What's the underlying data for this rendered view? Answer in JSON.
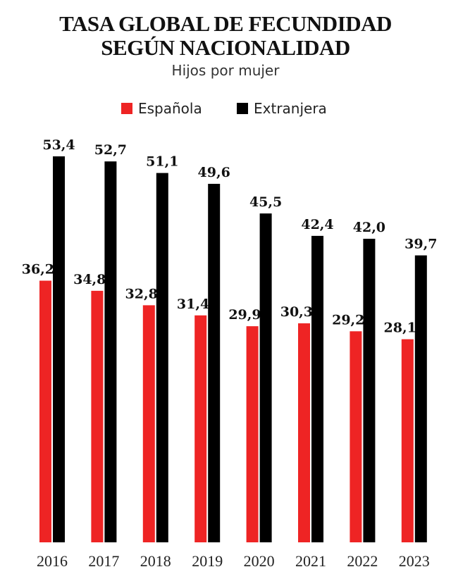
{
  "title_line1": "TASA GLOBAL DE FECUNDIDAD",
  "title_line2": "SEGÚN NACIONALIDAD",
  "subtitle": "Hijos por mujer",
  "legend": [
    {
      "label": "Española",
      "color": "#ee2424"
    },
    {
      "label": "Extranjera",
      "color": "#000000"
    }
  ],
  "chart_data": {
    "type": "bar",
    "title": "TASA GLOBAL DE FECUNDIDAD SEGÚN NACIONALIDAD",
    "subtitle": "Hijos por mujer",
    "categories": [
      "2016",
      "2017",
      "2018",
      "2019",
      "2020",
      "2021",
      "2022",
      "2023"
    ],
    "series": [
      {
        "name": "Española",
        "color": "#ee2424",
        "values": [
          36.2,
          34.8,
          32.8,
          31.4,
          29.9,
          30.3,
          29.2,
          28.1
        ],
        "labels": [
          "36,2",
          "34,8",
          "32,8",
          "31,4",
          "29,9",
          "30,3",
          "29,2",
          "28,1"
        ]
      },
      {
        "name": "Extranjera",
        "color": "#000000",
        "values": [
          53.4,
          52.7,
          51.1,
          49.6,
          45.5,
          42.4,
          42.0,
          39.7
        ],
        "labels": [
          "53,4",
          "52,7",
          "51,1",
          "49,6",
          "45,5",
          "42,4",
          "42,0",
          "39,7"
        ]
      }
    ],
    "ylim": [
      0,
      58
    ],
    "grid": false,
    "legend_position": "top"
  }
}
